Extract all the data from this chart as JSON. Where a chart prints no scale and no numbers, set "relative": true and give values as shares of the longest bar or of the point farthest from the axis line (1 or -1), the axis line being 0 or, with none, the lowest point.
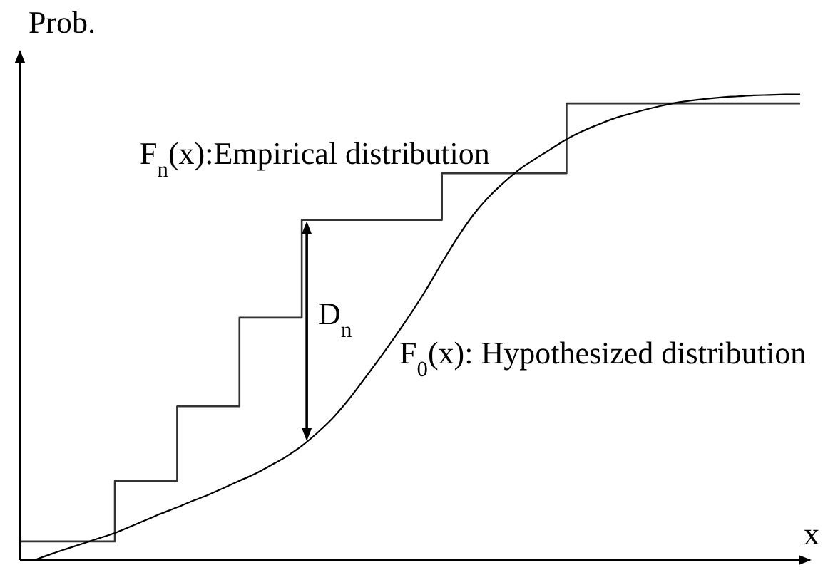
{
  "chart_data": {
    "type": "step",
    "relative": true,
    "xlabel": "x",
    "ylabel": "Prob.",
    "categories": [
      null,
      null,
      null,
      null,
      null,
      null,
      null,
      null,
      null,
      null,
      null,
      null,
      null,
      null,
      null,
      null,
      null,
      null,
      null,
      null,
      null,
      null,
      null,
      null,
      null,
      null,
      null,
      null,
      null,
      null,
      null,
      null,
      null,
      null,
      null,
      null,
      null,
      null,
      null,
      null,
      null,
      null,
      null,
      null,
      null,
      null,
      null,
      null,
      null,
      null,
      null
    ],
    "series": [
      {
        "name": "F$_{n}$(x):Empirical distribution",
        "color": "#333333",
        "values": [
          0.04,
          0.04,
          0.04,
          0.04,
          0.04,
          0.04,
          0.17,
          0.17,
          0.17,
          0.17,
          0.33,
          0.33,
          0.33,
          0.33,
          0.52,
          0.52,
          0.52,
          0.52,
          0.73,
          0.73,
          0.73,
          0.73,
          0.73,
          0.73,
          0.73,
          0.73,
          0.73,
          0.83,
          0.83,
          0.83,
          0.83,
          0.83,
          0.83,
          0.83,
          0.83,
          0.98,
          0.98,
          0.98,
          0.98,
          0.98,
          0.98,
          0.98,
          0.98,
          0.98,
          0.98,
          0.98,
          0.98,
          0.98,
          0.98,
          0.98,
          0.98
        ]
      },
      {
        "name": "F$_{0}$(x): Hypothesized distribution",
        "type": "line",
        "color": "#000000",
        "values": [
          null,
          0.002,
          0.014,
          0.025,
          0.036,
          0.047,
          0.058,
          0.072,
          0.086,
          0.1,
          0.113,
          0.127,
          0.14,
          0.155,
          0.17,
          0.185,
          0.203,
          0.222,
          0.245,
          0.273,
          0.305,
          0.344,
          0.388,
          0.433,
          0.48,
          0.529,
          0.581,
          0.638,
          0.692,
          0.74,
          0.779,
          0.811,
          0.839,
          0.861,
          0.882,
          0.903,
          0.92,
          0.934,
          0.947,
          0.957,
          0.966,
          0.974,
          0.981,
          0.986,
          0.99,
          0.993,
          0.995,
          0.997,
          0.998,
          0.999,
          1
        ]
      }
    ],
    "annotations": [
      "D$_{n}$"
    ]
  }
}
